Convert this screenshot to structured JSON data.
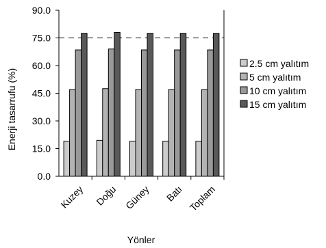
{
  "chart_data": {
    "type": "bar",
    "title": "",
    "xlabel": "Yönler",
    "ylabel": "Enerji tasarrufu (%)",
    "categories": [
      "Kuzey",
      "Doğu",
      "Güney",
      "Batı",
      "Toplam"
    ],
    "ylim": [
      0,
      90
    ],
    "yticks": [
      "0.0",
      "15.0",
      "30.0",
      "45.0",
      "60.0",
      "75.0",
      "90.0"
    ],
    "ytick_values": [
      0,
      15,
      30,
      45,
      60,
      75,
      90
    ],
    "grid": "dashed horizontal at 75.0",
    "legend_position": "right",
    "series": [
      {
        "name": "2.5 cm yalıtım",
        "color": "#cccccc",
        "values": [
          19.0,
          19.5,
          19.0,
          19.0,
          19.0
        ]
      },
      {
        "name": "5 cm yalıtım",
        "color": "#b3b3b3",
        "values": [
          47.0,
          47.5,
          47.0,
          47.0,
          47.0
        ]
      },
      {
        "name": "10 cm yalıtım",
        "color": "#999999",
        "values": [
          68.5,
          69.0,
          68.5,
          68.5,
          68.5
        ]
      },
      {
        "name": "15 cm yalıtım",
        "color": "#595959",
        "values": [
          77.5,
          78.0,
          77.5,
          77.5,
          77.5
        ]
      }
    ]
  }
}
